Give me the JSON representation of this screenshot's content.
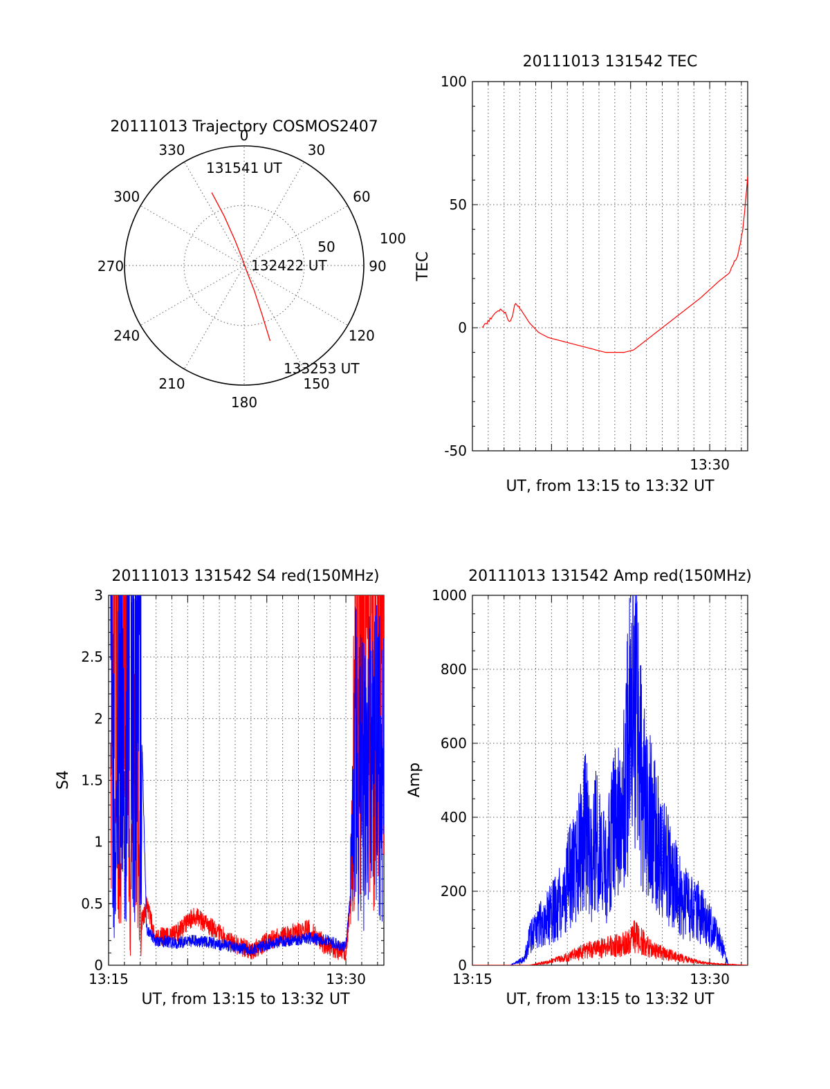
{
  "colors": {
    "red": "#ff0000",
    "blue": "#0000ff",
    "grid": "#555555"
  },
  "chart_data": [
    {
      "type": "polar",
      "title": "20111013 Trajectory COSMOS2407",
      "angle_labels": [
        "0",
        "30",
        "60",
        "90",
        "120",
        "150",
        "180",
        "210",
        "240",
        "270",
        "300",
        "330"
      ],
      "radial_labels": [
        "50",
        "100"
      ],
      "rlim": [
        0,
        100
      ],
      "grid": true,
      "trajectory": {
        "color": "#ff0000",
        "points": [
          {
            "az": 336,
            "el": 30
          },
          {
            "az": 338,
            "el": 50
          },
          {
            "az": 340,
            "el": 70
          },
          {
            "az": 345,
            "el": 85
          },
          {
            "az": 155,
            "el": 86
          },
          {
            "az": 158,
            "el": 70
          },
          {
            "az": 160,
            "el": 50
          },
          {
            "az": 161,
            "el": 30
          }
        ]
      },
      "annotations": [
        {
          "text": "131541 UT",
          "az": 341,
          "el": 30
        },
        {
          "text": "132422 UT",
          "az": 90,
          "el": 90
        },
        {
          "text": "133253 UT",
          "az": 161,
          "el": 30
        }
      ]
    },
    {
      "type": "line",
      "title": "20111013 131542 TEC",
      "xlabel": "UT, from 13:15 to 13:32 UT",
      "ylabel": "TEC",
      "xtick_labels": [
        "13:30"
      ],
      "ytick_labels": [
        "-50",
        "0",
        "50",
        "100"
      ],
      "xlim": [
        13.25,
        13.54
      ],
      "ylim": [
        -50,
        100
      ],
      "grid": true,
      "series": [
        {
          "color": "#ff0000",
          "x": [
            13.26,
            13.265,
            13.27,
            13.275,
            13.28,
            13.285,
            13.288,
            13.291,
            13.295,
            13.3,
            13.31,
            13.32,
            13.33,
            13.35,
            13.37,
            13.39,
            13.41,
            13.42,
            13.43,
            13.45,
            13.47,
            13.49,
            13.51,
            13.52,
            13.53,
            13.535,
            13.54
          ],
          "y": [
            0,
            2,
            4,
            6,
            7.5,
            6,
            3,
            3,
            10,
            8,
            2,
            -2,
            -4,
            -6,
            -8,
            -10,
            -10,
            -9,
            -6,
            0,
            6,
            12,
            19,
            22,
            30,
            40,
            61
          ]
        }
      ]
    },
    {
      "type": "line",
      "title": "20111013 131542 S4 red(150MHz)",
      "xlabel": "UT, from 13:15 to 13:32 UT",
      "ylabel": "S4",
      "xtick_labels": [
        "13:15",
        "13:30"
      ],
      "ytick_labels": [
        "0",
        "0.5",
        "1",
        "1.5",
        "2",
        "2.5",
        "3"
      ],
      "xlim": [
        13.25,
        13.54
      ],
      "ylim": [
        0,
        3
      ],
      "grid": true,
      "series": [
        {
          "color": "#ff0000",
          "x": [
            13.252,
            13.258,
            13.263,
            13.268,
            13.273,
            13.278,
            13.284,
            13.29,
            13.3,
            13.32,
            13.34,
            13.36,
            13.38,
            13.4,
            13.42,
            13.44,
            13.46,
            13.48,
            13.5,
            13.505,
            13.51,
            13.52,
            13.53,
            13.54
          ],
          "y": [
            1.2,
            2.8,
            0.4,
            3.0,
            0.2,
            2.5,
            0.3,
            0.5,
            0.22,
            0.25,
            0.4,
            0.3,
            0.18,
            0.12,
            0.2,
            0.25,
            0.3,
            0.15,
            0.1,
            0.5,
            2.0,
            2.8,
            2.0,
            3.0
          ]
        },
        {
          "color": "#0000ff",
          "x": [
            13.252,
            13.257,
            13.262,
            13.267,
            13.272,
            13.277,
            13.282,
            13.29,
            13.3,
            13.32,
            13.34,
            13.36,
            13.38,
            13.4,
            13.42,
            13.44,
            13.46,
            13.48,
            13.5,
            13.505,
            13.51,
            13.52,
            13.53,
            13.54
          ],
          "y": [
            3.0,
            0.5,
            2.5,
            0.8,
            3.0,
            1.5,
            2.8,
            0.3,
            0.2,
            0.18,
            0.2,
            0.18,
            0.15,
            0.12,
            0.18,
            0.2,
            0.22,
            0.2,
            0.15,
            0.6,
            1.5,
            1.3,
            1.6,
            1.4
          ]
        }
      ]
    },
    {
      "type": "line",
      "title": "20111013 131542 Amp red(150MHz)",
      "xlabel": "UT, from 13:15 to 13:32 UT",
      "ylabel": "Amp",
      "xtick_labels": [
        "13:15",
        "13:30"
      ],
      "ytick_labels": [
        "0",
        "200",
        "400",
        "600",
        "800",
        "1000"
      ],
      "xlim": [
        13.25,
        13.54
      ],
      "ylim": [
        0,
        1000
      ],
      "grid": true,
      "series": [
        {
          "color": "#0000ff",
          "x": [
            13.25,
            13.29,
            13.305,
            13.31,
            13.32,
            13.33,
            13.34,
            13.35,
            13.36,
            13.37,
            13.375,
            13.38,
            13.39,
            13.4,
            13.41,
            13.42,
            13.425,
            13.43,
            13.44,
            13.45,
            13.46,
            13.47,
            13.48,
            13.49,
            13.5,
            13.51,
            13.52,
            13.54
          ],
          "y": [
            0,
            0,
            20,
            80,
            120,
            150,
            180,
            250,
            330,
            420,
            300,
            380,
            300,
            420,
            520,
            880,
            650,
            520,
            420,
            330,
            280,
            200,
            180,
            160,
            120,
            80,
            0,
            0
          ]
        },
        {
          "color": "#ff0000",
          "x": [
            13.25,
            13.31,
            13.33,
            13.35,
            13.37,
            13.39,
            13.41,
            13.42,
            13.43,
            13.44,
            13.46,
            13.48,
            13.5,
            13.54
          ],
          "y": [
            0,
            0,
            10,
            25,
            45,
            55,
            65,
            90,
            70,
            45,
            30,
            15,
            5,
            0
          ]
        }
      ]
    }
  ]
}
